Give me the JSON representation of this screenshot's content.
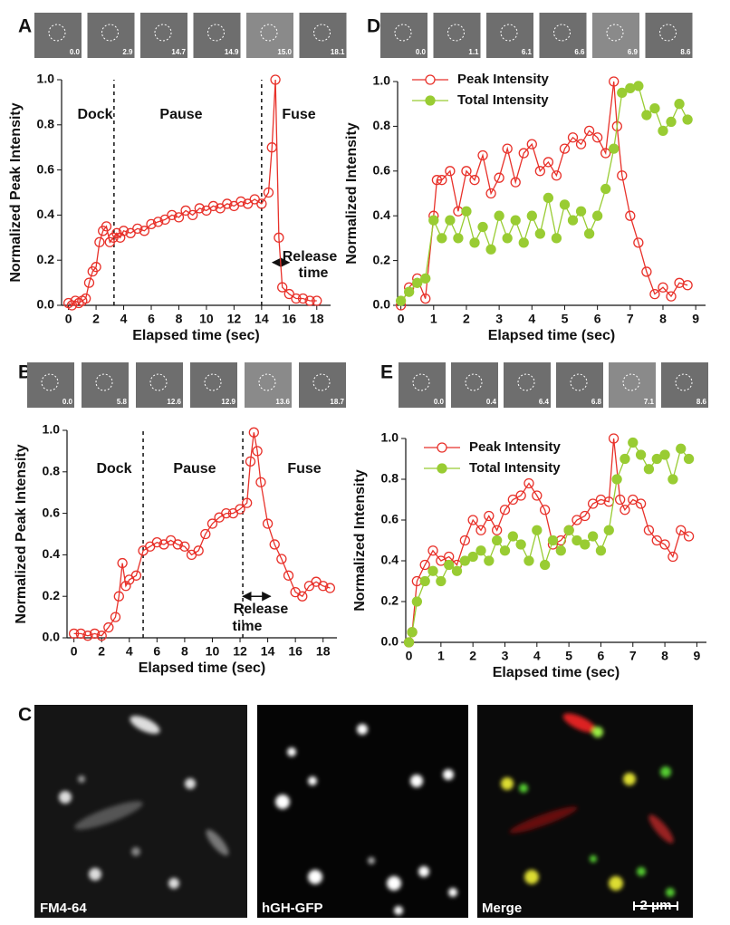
{
  "chart_data": [
    {
      "type": "line",
      "panel": "A",
      "frames": [
        "0.0",
        "2.9",
        "14.7",
        "14.9",
        "15.0",
        "18.1"
      ],
      "x_label": "Elapsed time (sec)",
      "y_label": "Normalized Peak Intensity",
      "annotations": [
        "Dock",
        "Pause",
        "Fuse",
        "Release",
        "time"
      ],
      "vlines": [
        3.3,
        14
      ],
      "release_arrow": {
        "x": [
          14.8,
          16
        ],
        "y": 0.19
      },
      "xlim": [
        -0.5,
        19
      ],
      "ylim": [
        0,
        1
      ],
      "xticks": [
        0,
        2,
        4,
        6,
        8,
        10,
        12,
        14,
        16,
        18
      ],
      "yticks": [
        {
          "value": 0,
          "label": "0.0"
        },
        0.2,
        0.4,
        0.6,
        0.8,
        {
          "value": 1,
          "label": "1.0"
        }
      ],
      "series": [
        {
          "color": "#e8312a",
          "marker": "open",
          "x": [
            0,
            0.25,
            0.5,
            0.75,
            1,
            1.25,
            1.5,
            1.75,
            2,
            2.25,
            2.5,
            2.75,
            3,
            3.25,
            3.5,
            3.75,
            4,
            4.5,
            5,
            5.5,
            6,
            6.5,
            7,
            7.5,
            8,
            8.5,
            9,
            9.5,
            10,
            10.5,
            11,
            11.5,
            12,
            12.5,
            13,
            13.5,
            14,
            14.5,
            14.75,
            15,
            15.25,
            15.5,
            16,
            16.5,
            17,
            17.5,
            18
          ],
          "values": [
            0.01,
            0,
            0.02,
            0.01,
            0.02,
            0.03,
            0.1,
            0.15,
            0.17,
            0.28,
            0.33,
            0.35,
            0.28,
            0.3,
            0.32,
            0.3,
            0.33,
            0.32,
            0.34,
            0.33,
            0.36,
            0.37,
            0.38,
            0.4,
            0.39,
            0.42,
            0.4,
            0.43,
            0.42,
            0.44,
            0.43,
            0.45,
            0.44,
            0.46,
            0.45,
            0.47,
            0.45,
            0.5,
            0.7,
            1.0,
            0.3,
            0.08,
            0.05,
            0.03,
            0.03,
            0.02,
            0.02
          ]
        }
      ]
    },
    {
      "type": "line",
      "panel": "B",
      "frames": [
        "0.0",
        "5.8",
        "12.6",
        "12.9",
        "13.6",
        "18.7"
      ],
      "x_label": "Elapsed time (sec)",
      "y_label": "Normalized Peak Intensity",
      "annotations": [
        "Dock",
        "Pause",
        "Fuse",
        "Release",
        "time"
      ],
      "vlines": [
        5,
        12.2
      ],
      "release_arrow": {
        "x": [
          12.2,
          14.2
        ],
        "y": 0.2
      },
      "xlim": [
        -0.5,
        19
      ],
      "ylim": [
        0,
        1
      ],
      "xticks": [
        0,
        2,
        4,
        6,
        8,
        10,
        12,
        14,
        16,
        18
      ],
      "yticks": [
        {
          "value": 0,
          "label": "0.0"
        },
        0.2,
        0.4,
        0.6,
        0.8,
        {
          "value": 1,
          "label": "1.0"
        }
      ],
      "series": [
        {
          "color": "#e8312a",
          "marker": "open",
          "x": [
            0,
            0.5,
            1,
            1.5,
            2,
            2.5,
            3,
            3.25,
            3.5,
            3.75,
            4,
            4.5,
            5,
            5.5,
            6,
            6.5,
            7,
            7.5,
            8,
            8.5,
            9,
            9.5,
            10,
            10.5,
            11,
            11.5,
            12,
            12.5,
            12.75,
            13,
            13.25,
            13.5,
            14,
            14.5,
            15,
            15.5,
            16,
            16.5,
            17,
            17.5,
            18,
            18.5
          ],
          "values": [
            0.02,
            0.02,
            0.01,
            0.02,
            0.01,
            0.05,
            0.1,
            0.2,
            0.36,
            0.25,
            0.28,
            0.3,
            0.42,
            0.44,
            0.46,
            0.45,
            0.47,
            0.45,
            0.44,
            0.4,
            0.42,
            0.5,
            0.55,
            0.58,
            0.6,
            0.6,
            0.62,
            0.65,
            0.85,
            0.99,
            0.9,
            0.75,
            0.55,
            0.45,
            0.38,
            0.3,
            0.22,
            0.2,
            0.25,
            0.27,
            0.25,
            0.24
          ]
        }
      ]
    },
    {
      "type": "line",
      "panel": "D",
      "frames": [
        "0.0",
        "1.1",
        "6.1",
        "6.6",
        "6.9",
        "8.6"
      ],
      "x_label": "Elapsed time (sec)",
      "y_label": "Normalized Intensity",
      "xlim": [
        -0.1,
        9.3
      ],
      "ylim": [
        0,
        1
      ],
      "xticks": [
        0,
        1,
        2,
        3,
        4,
        5,
        6,
        7,
        8,
        9
      ],
      "yticks": [
        {
          "value": 0,
          "label": "0.0"
        },
        0.2,
        0.4,
        0.6,
        0.8,
        {
          "value": 1,
          "label": "1.0"
        }
      ],
      "series": [
        {
          "name": "Peak Intensity",
          "color": "#e8312a",
          "marker": "open",
          "x": [
            0,
            0.25,
            0.5,
            0.75,
            1,
            1.1,
            1.25,
            1.5,
            1.75,
            2,
            2.25,
            2.5,
            2.75,
            3,
            3.25,
            3.5,
            3.75,
            4,
            4.25,
            4.5,
            4.75,
            5,
            5.25,
            5.5,
            5.75,
            6,
            6.25,
            6.5,
            6.6,
            6.75,
            7,
            7.25,
            7.5,
            7.75,
            8,
            8.25,
            8.5,
            8.75
          ],
          "values": [
            0,
            0.08,
            0.12,
            0.03,
            0.4,
            0.56,
            0.56,
            0.6,
            0.42,
            0.6,
            0.56,
            0.67,
            0.5,
            0.57,
            0.7,
            0.55,
            0.68,
            0.72,
            0.6,
            0.64,
            0.58,
            0.7,
            0.75,
            0.72,
            0.78,
            0.75,
            0.68,
            1.0,
            0.8,
            0.58,
            0.4,
            0.28,
            0.15,
            0.05,
            0.08,
            0.04,
            0.1,
            0.09
          ]
        },
        {
          "name": "Total Intensity",
          "color": "#99cc33",
          "marker": "filled",
          "x": [
            0,
            0.25,
            0.5,
            0.75,
            1,
            1.25,
            1.5,
            1.75,
            2,
            2.25,
            2.5,
            2.75,
            3,
            3.25,
            3.5,
            3.75,
            4,
            4.25,
            4.5,
            4.75,
            5,
            5.25,
            5.5,
            5.75,
            6,
            6.25,
            6.5,
            6.75,
            7,
            7.25,
            7.5,
            7.75,
            8,
            8.25,
            8.5,
            8.75
          ],
          "values": [
            0.02,
            0.06,
            0.1,
            0.12,
            0.38,
            0.3,
            0.38,
            0.3,
            0.42,
            0.28,
            0.35,
            0.25,
            0.4,
            0.3,
            0.38,
            0.28,
            0.4,
            0.32,
            0.48,
            0.3,
            0.45,
            0.38,
            0.42,
            0.32,
            0.4,
            0.52,
            0.7,
            0.95,
            0.97,
            0.98,
            0.85,
            0.88,
            0.78,
            0.82,
            0.9,
            0.83
          ]
        }
      ]
    },
    {
      "type": "line",
      "panel": "E",
      "frames": [
        "0.0",
        "0.4",
        "6.4",
        "6.8",
        "7.1",
        "8.6"
      ],
      "x_label": "Elapsed time (sec)",
      "y_label": "Normalized Intensity",
      "xlim": [
        -0.1,
        9.3
      ],
      "ylim": [
        0,
        1
      ],
      "xticks": [
        0,
        1,
        2,
        3,
        4,
        5,
        6,
        7,
        8,
        9
      ],
      "yticks": [
        {
          "value": 0,
          "label": "0.0"
        },
        0.2,
        0.4,
        0.6,
        0.8,
        {
          "value": 1,
          "label": "1.0"
        }
      ],
      "series": [
        {
          "name": "Peak Intensity",
          "color": "#e8312a",
          "marker": "open",
          "x": [
            0,
            0.1,
            0.25,
            0.5,
            0.75,
            1,
            1.25,
            1.5,
            1.75,
            2,
            2.25,
            2.5,
            2.75,
            3,
            3.25,
            3.5,
            3.75,
            4,
            4.25,
            4.5,
            4.75,
            5,
            5.25,
            5.5,
            5.75,
            6,
            6.25,
            6.4,
            6.6,
            6.75,
            7,
            7.25,
            7.5,
            7.75,
            8,
            8.25,
            8.5,
            8.75
          ],
          "values": [
            0,
            0.05,
            0.3,
            0.38,
            0.45,
            0.4,
            0.42,
            0.38,
            0.5,
            0.6,
            0.55,
            0.62,
            0.55,
            0.65,
            0.7,
            0.72,
            0.78,
            0.72,
            0.65,
            0.48,
            0.5,
            0.55,
            0.6,
            0.62,
            0.68,
            0.7,
            0.69,
            1.0,
            0.7,
            0.65,
            0.7,
            0.68,
            0.55,
            0.5,
            0.48,
            0.42,
            0.55,
            0.52
          ]
        },
        {
          "name": "Total Intensity",
          "color": "#99cc33",
          "marker": "filled",
          "x": [
            0,
            0.1,
            0.25,
            0.5,
            0.75,
            1,
            1.25,
            1.5,
            1.75,
            2,
            2.25,
            2.5,
            2.75,
            3,
            3.25,
            3.5,
            3.75,
            4,
            4.25,
            4.5,
            4.75,
            5,
            5.25,
            5.5,
            5.75,
            6,
            6.25,
            6.5,
            6.75,
            7,
            7.25,
            7.5,
            7.75,
            8,
            8.25,
            8.5,
            8.75
          ],
          "values": [
            0,
            0.05,
            0.2,
            0.3,
            0.35,
            0.3,
            0.38,
            0.35,
            0.4,
            0.42,
            0.45,
            0.4,
            0.5,
            0.45,
            0.52,
            0.48,
            0.4,
            0.55,
            0.38,
            0.5,
            0.45,
            0.55,
            0.5,
            0.48,
            0.52,
            0.45,
            0.55,
            0.8,
            0.9,
            0.98,
            0.92,
            0.85,
            0.9,
            0.92,
            0.8,
            0.95,
            0.9
          ]
        }
      ]
    }
  ],
  "panel_c": {
    "panel": "C",
    "labels": [
      "FM4-64",
      "hGH-GFP",
      "Merge"
    ],
    "scale_bar": "2 μm"
  }
}
